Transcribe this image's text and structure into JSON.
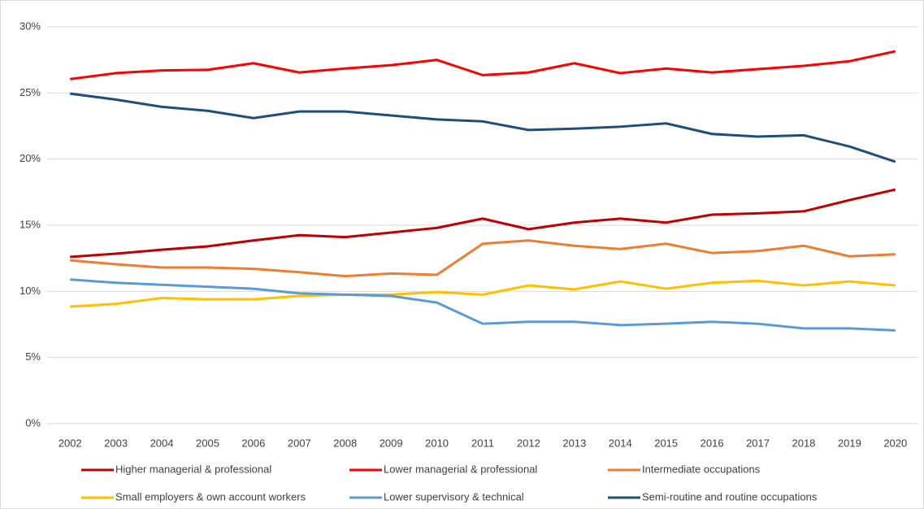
{
  "chart_data": {
    "type": "line",
    "x": [
      2002,
      2003,
      2004,
      2005,
      2006,
      2007,
      2008,
      2009,
      2010,
      2011,
      2012,
      2013,
      2014,
      2015,
      2016,
      2017,
      2018,
      2019,
      2020
    ],
    "xlim": [
      2001.5,
      2020.5
    ],
    "ylim": [
      0,
      30
    ],
    "yticks": [
      {
        "value": 0,
        "label": "0%"
      },
      {
        "value": 5,
        "label": "5%"
      },
      {
        "value": 10,
        "label": "10%"
      },
      {
        "value": 15,
        "label": "15%"
      },
      {
        "value": 20,
        "label": "20%"
      },
      {
        "value": 25,
        "label": "25%"
      },
      {
        "value": 30,
        "label": "30%"
      }
    ],
    "grid": true,
    "legend": "bottom",
    "series": [
      {
        "name": "Higher managerial & professional",
        "color": "#c00000",
        "values": [
          12.6,
          12.85,
          13.15,
          13.4,
          13.85,
          14.25,
          14.1,
          14.45,
          14.8,
          15.5,
          14.7,
          15.2,
          15.5,
          15.2,
          15.8,
          15.9,
          16.05,
          16.9,
          17.7
        ]
      },
      {
        "name": "Lower managerial & professional",
        "color": "#ff0000",
        "values": [
          26.05,
          26.5,
          26.7,
          26.75,
          27.25,
          26.55,
          26.85,
          27.1,
          27.5,
          26.35,
          26.55,
          27.25,
          26.5,
          26.85,
          26.55,
          26.8,
          27.05,
          27.4,
          28.15
        ]
      },
      {
        "name": "Intermediate occupations",
        "color": "#ed7d31",
        "values": [
          12.35,
          12.05,
          11.8,
          11.8,
          11.7,
          11.45,
          11.15,
          11.35,
          11.25,
          13.6,
          13.85,
          13.45,
          13.2,
          13.6,
          12.9,
          13.05,
          13.45,
          12.65,
          12.8
        ]
      },
      {
        "name": "Small employers & own account workers",
        "color": "#ffc000",
        "values": [
          8.85,
          9.05,
          9.5,
          9.4,
          9.4,
          9.65,
          9.75,
          9.75,
          9.95,
          9.75,
          10.45,
          10.15,
          10.75,
          10.2,
          10.65,
          10.8,
          10.45,
          10.75,
          10.45
        ]
      },
      {
        "name": "Lower supervisory & technical",
        "color": "#5b9bd5",
        "values": [
          10.9,
          10.65,
          10.5,
          10.35,
          10.2,
          9.85,
          9.75,
          9.65,
          9.15,
          7.55,
          7.7,
          7.7,
          7.45,
          7.55,
          7.7,
          7.55,
          7.2,
          7.2,
          7.05
        ]
      },
      {
        "name": "Semi-routine and routine occupations",
        "color": "#1f4e79",
        "values": [
          24.95,
          24.5,
          23.95,
          23.65,
          23.1,
          23.6,
          23.6,
          23.3,
          23.0,
          22.85,
          22.2,
          22.3,
          22.45,
          22.7,
          21.9,
          21.7,
          21.8,
          20.95,
          19.8
        ]
      }
    ]
  }
}
